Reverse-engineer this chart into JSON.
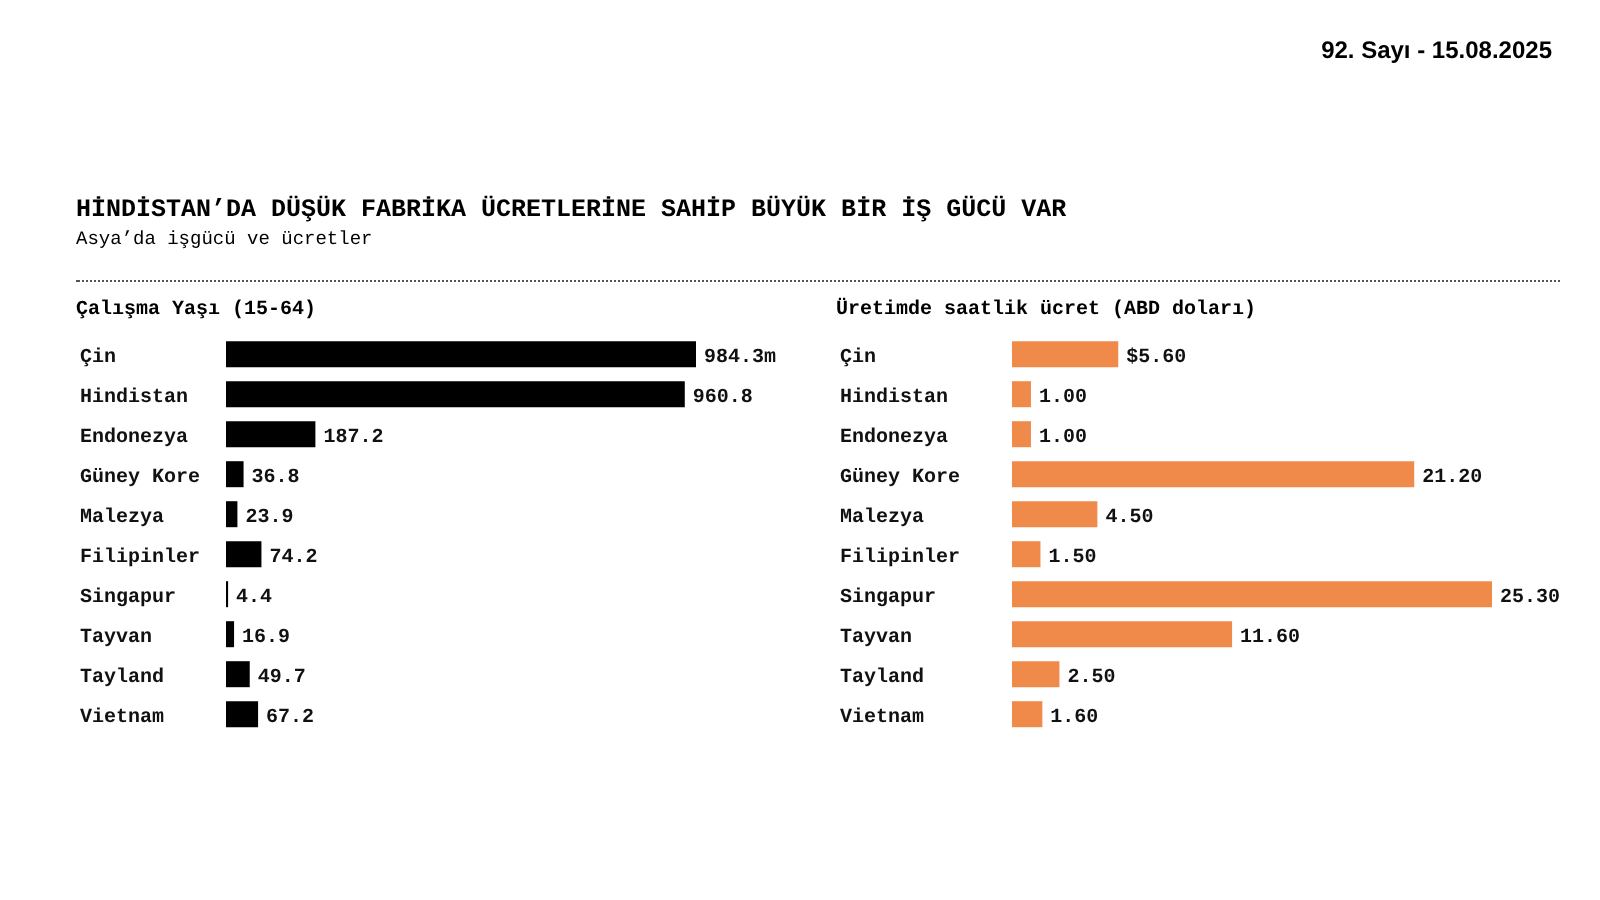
{
  "chart_data": [
    {
      "type": "bar",
      "orientation": "horizontal",
      "title": "Çalışma Yaşı (15-64)",
      "annotations": [
        "92. Sayı - 15.08.2025",
        "HİNDİSTAN’DA DÜŞÜK FABRİKA ÜCRETLERİNE SAHİP BÜYÜK BİR İŞ GÜCÜ VAR",
        "Asya’da işgücü ve ücretler"
      ],
      "categories": [
        "Çin",
        "Hindistan",
        "Endonezya",
        "Güney Kore",
        "Malezya",
        "Filipinler",
        "Singapur",
        "Tayvan",
        "Tayland",
        "Vietnam"
      ],
      "values": [
        984.3,
        960.8,
        187.2,
        36.8,
        23.9,
        74.2,
        4.4,
        16.9,
        49.7,
        67.2
      ],
      "value_labels": [
        "984.3m",
        "960.8",
        "187.2",
        "36.8",
        "23.9",
        "74.2",
        "4.4",
        "16.9",
        "49.7",
        "67.2"
      ],
      "color": "#000000"
    },
    {
      "type": "bar",
      "orientation": "horizontal",
      "title": "Üretimde saatlik ücret (ABD doları)",
      "categories": [
        "Çin",
        "Hindistan",
        "Endonezya",
        "Güney Kore",
        "Malezya",
        "Filipinler",
        "Singapur",
        "Tayvan",
        "Tayland",
        "Vietnam"
      ],
      "values": [
        5.6,
        1.0,
        1.0,
        21.2,
        4.5,
        1.5,
        25.3,
        11.6,
        2.5,
        1.6
      ],
      "value_labels": [
        "$5.60",
        "1.00",
        "1.00",
        "21.20",
        "4.50",
        "1.50",
        "25.30",
        "11.60",
        "2.50",
        "1.60"
      ],
      "color": "#f08a4b"
    }
  ]
}
